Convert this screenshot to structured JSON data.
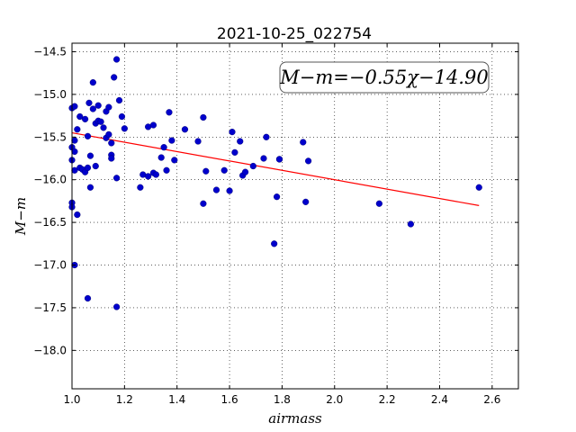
{
  "chart_data": {
    "type": "scatter",
    "title": "2021-10-25_022754",
    "xlabel": "airmass",
    "ylabel": "M−m",
    "xlim": [
      1.0,
      2.7
    ],
    "ylim": [
      -14.4,
      -18.45
    ],
    "y_inverted": true,
    "grid": true,
    "grid_style": "dotted",
    "x_ticks": [
      1.0,
      1.2,
      1.4,
      1.6,
      1.8,
      2.0,
      2.2,
      2.4,
      2.6
    ],
    "x_tick_labels": [
      "1.0",
      "1.2",
      "1.4",
      "1.6",
      "1.8",
      "2.0",
      "2.2",
      "2.4",
      "2.6"
    ],
    "y_ticks": [
      -14.5,
      -15.0,
      -15.5,
      -16.0,
      -16.5,
      -17.0,
      -17.5,
      -18.0
    ],
    "y_tick_labels": [
      "−14.5",
      "−15.0",
      "−15.5",
      "−16.0",
      "−16.5",
      "−17.0",
      "−17.5",
      "−18.0"
    ],
    "annotation": "M−m=−0.55χ−14.90",
    "fit": {
      "slope": -0.55,
      "intercept": -14.9,
      "x_range": [
        1.0,
        2.55
      ],
      "color": "#ff0000"
    },
    "marker_color": "#0000cc",
    "series": [
      {
        "points": [
          [
            1.0,
            -15.16
          ],
          [
            1.0,
            -15.62
          ],
          [
            1.0,
            -15.77
          ],
          [
            1.0,
            -16.27
          ],
          [
            1.0,
            -16.32
          ],
          [
            1.01,
            -15.14
          ],
          [
            1.01,
            -15.54
          ],
          [
            1.01,
            -15.67
          ],
          [
            1.01,
            -15.89
          ],
          [
            1.01,
            -17.0
          ],
          [
            1.02,
            -15.41
          ],
          [
            1.02,
            -16.41
          ],
          [
            1.03,
            -15.26
          ],
          [
            1.03,
            -15.86
          ],
          [
            1.04,
            -15.88
          ],
          [
            1.05,
            -15.29
          ],
          [
            1.05,
            -15.91
          ],
          [
            1.06,
            -15.49
          ],
          [
            1.06,
            -15.86
          ],
          [
            1.06,
            -17.39
          ],
          [
            1.065,
            -15.1
          ],
          [
            1.07,
            -15.72
          ],
          [
            1.07,
            -16.09
          ],
          [
            1.08,
            -14.86
          ],
          [
            1.08,
            -15.17
          ],
          [
            1.09,
            -15.34
          ],
          [
            1.09,
            -15.84
          ],
          [
            1.1,
            -15.13
          ],
          [
            1.1,
            -15.31
          ],
          [
            1.11,
            -15.32
          ],
          [
            1.12,
            -15.39
          ],
          [
            1.13,
            -15.2
          ],
          [
            1.13,
            -15.51
          ],
          [
            1.14,
            -15.47
          ],
          [
            1.14,
            -15.15
          ],
          [
            1.15,
            -15.57
          ],
          [
            1.15,
            -15.71
          ],
          [
            1.15,
            -15.75
          ],
          [
            1.16,
            -14.8
          ],
          [
            1.17,
            -14.59
          ],
          [
            1.17,
            -15.98
          ],
          [
            1.17,
            -17.49
          ],
          [
            1.18,
            -15.07
          ],
          [
            1.19,
            -15.26
          ],
          [
            1.2,
            -15.4
          ],
          [
            1.26,
            -16.09
          ],
          [
            1.27,
            -15.94
          ],
          [
            1.29,
            -15.38
          ],
          [
            1.29,
            -15.96
          ],
          [
            1.31,
            -15.36
          ],
          [
            1.31,
            -15.92
          ],
          [
            1.32,
            -15.94
          ],
          [
            1.34,
            -15.74
          ],
          [
            1.35,
            -15.62
          ],
          [
            1.36,
            -15.89
          ],
          [
            1.37,
            -15.21
          ],
          [
            1.38,
            -15.54
          ],
          [
            1.39,
            -15.77
          ],
          [
            1.43,
            -15.41
          ],
          [
            1.48,
            -15.55
          ],
          [
            1.5,
            -15.27
          ],
          [
            1.5,
            -16.28
          ],
          [
            1.51,
            -15.9
          ],
          [
            1.55,
            -16.12
          ],
          [
            1.58,
            -15.89
          ],
          [
            1.6,
            -16.13
          ],
          [
            1.61,
            -15.44
          ],
          [
            1.62,
            -15.68
          ],
          [
            1.64,
            -15.55
          ],
          [
            1.65,
            -15.95
          ],
          [
            1.66,
            -15.91
          ],
          [
            1.69,
            -15.84
          ],
          [
            1.73,
            -15.75
          ],
          [
            1.74,
            -15.5
          ],
          [
            1.77,
            -16.75
          ],
          [
            1.78,
            -16.2
          ],
          [
            1.79,
            -15.76
          ],
          [
            1.79,
            -15.76
          ],
          [
            1.88,
            -15.56
          ],
          [
            1.89,
            -16.26
          ],
          [
            1.9,
            -15.78
          ],
          [
            2.17,
            -16.28
          ],
          [
            2.29,
            -16.52
          ],
          [
            2.55,
            -16.09
          ]
        ]
      }
    ]
  }
}
